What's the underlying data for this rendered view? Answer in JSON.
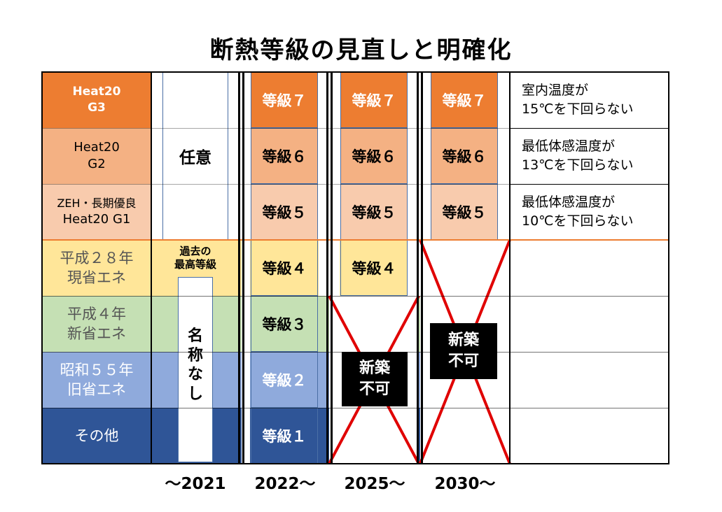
{
  "title": "断熱等級の見直しと明確化",
  "colors": {
    "grade7": "#ed7d31",
    "grade6": "#f4b183",
    "grade5": "#f8cbad",
    "grade4": "#ffe699",
    "grade3": "#c5e0b4",
    "grade2": "#8faadc",
    "grade1": "#2f5597",
    "cross": "#e00000"
  },
  "labels": [
    {
      "line1": "Heat20",
      "line2": "G3"
    },
    {
      "line1": "Heat20",
      "line2": "G2"
    },
    {
      "line1": "ZEH・長期優良",
      "line2": "Heat20 G1"
    },
    {
      "line1": "平成２８年",
      "line2": "現省エネ"
    },
    {
      "line1": "平成４年",
      "line2": "新省エネ"
    },
    {
      "line1": "昭和５５年",
      "line2": "旧省エネ"
    },
    {
      "line1": "その他",
      "line2": ""
    }
  ],
  "col2021": {
    "optional": "任意",
    "past_best": "過去の\n最高等級",
    "past_best_l1": "過去の",
    "past_best_l2": "最高等級",
    "no_name": "名称なし",
    "no_name_chars": [
      "名",
      "称",
      "な",
      "し"
    ]
  },
  "col2022": [
    "等級７",
    "等級６",
    "等級５",
    "等級４",
    "等級３",
    "等級２",
    "等級１"
  ],
  "col2025": [
    "等級７",
    "等級６",
    "等級５",
    "等級４"
  ],
  "col2030": [
    "等級７",
    "等級６",
    "等級５"
  ],
  "not_allowed": {
    "l1": "新築",
    "l2": "不可"
  },
  "descriptions": [
    {
      "l1": "室内温度が",
      "l2": "15℃を下回らない"
    },
    {
      "l1": "最低体感温度が",
      "l2": "13℃を下回らない"
    },
    {
      "l1": "最低体感温度が",
      "l2": "10℃を下回らない"
    }
  ],
  "years": [
    "〜2021",
    "2022〜",
    "2025〜",
    "2030〜"
  ]
}
